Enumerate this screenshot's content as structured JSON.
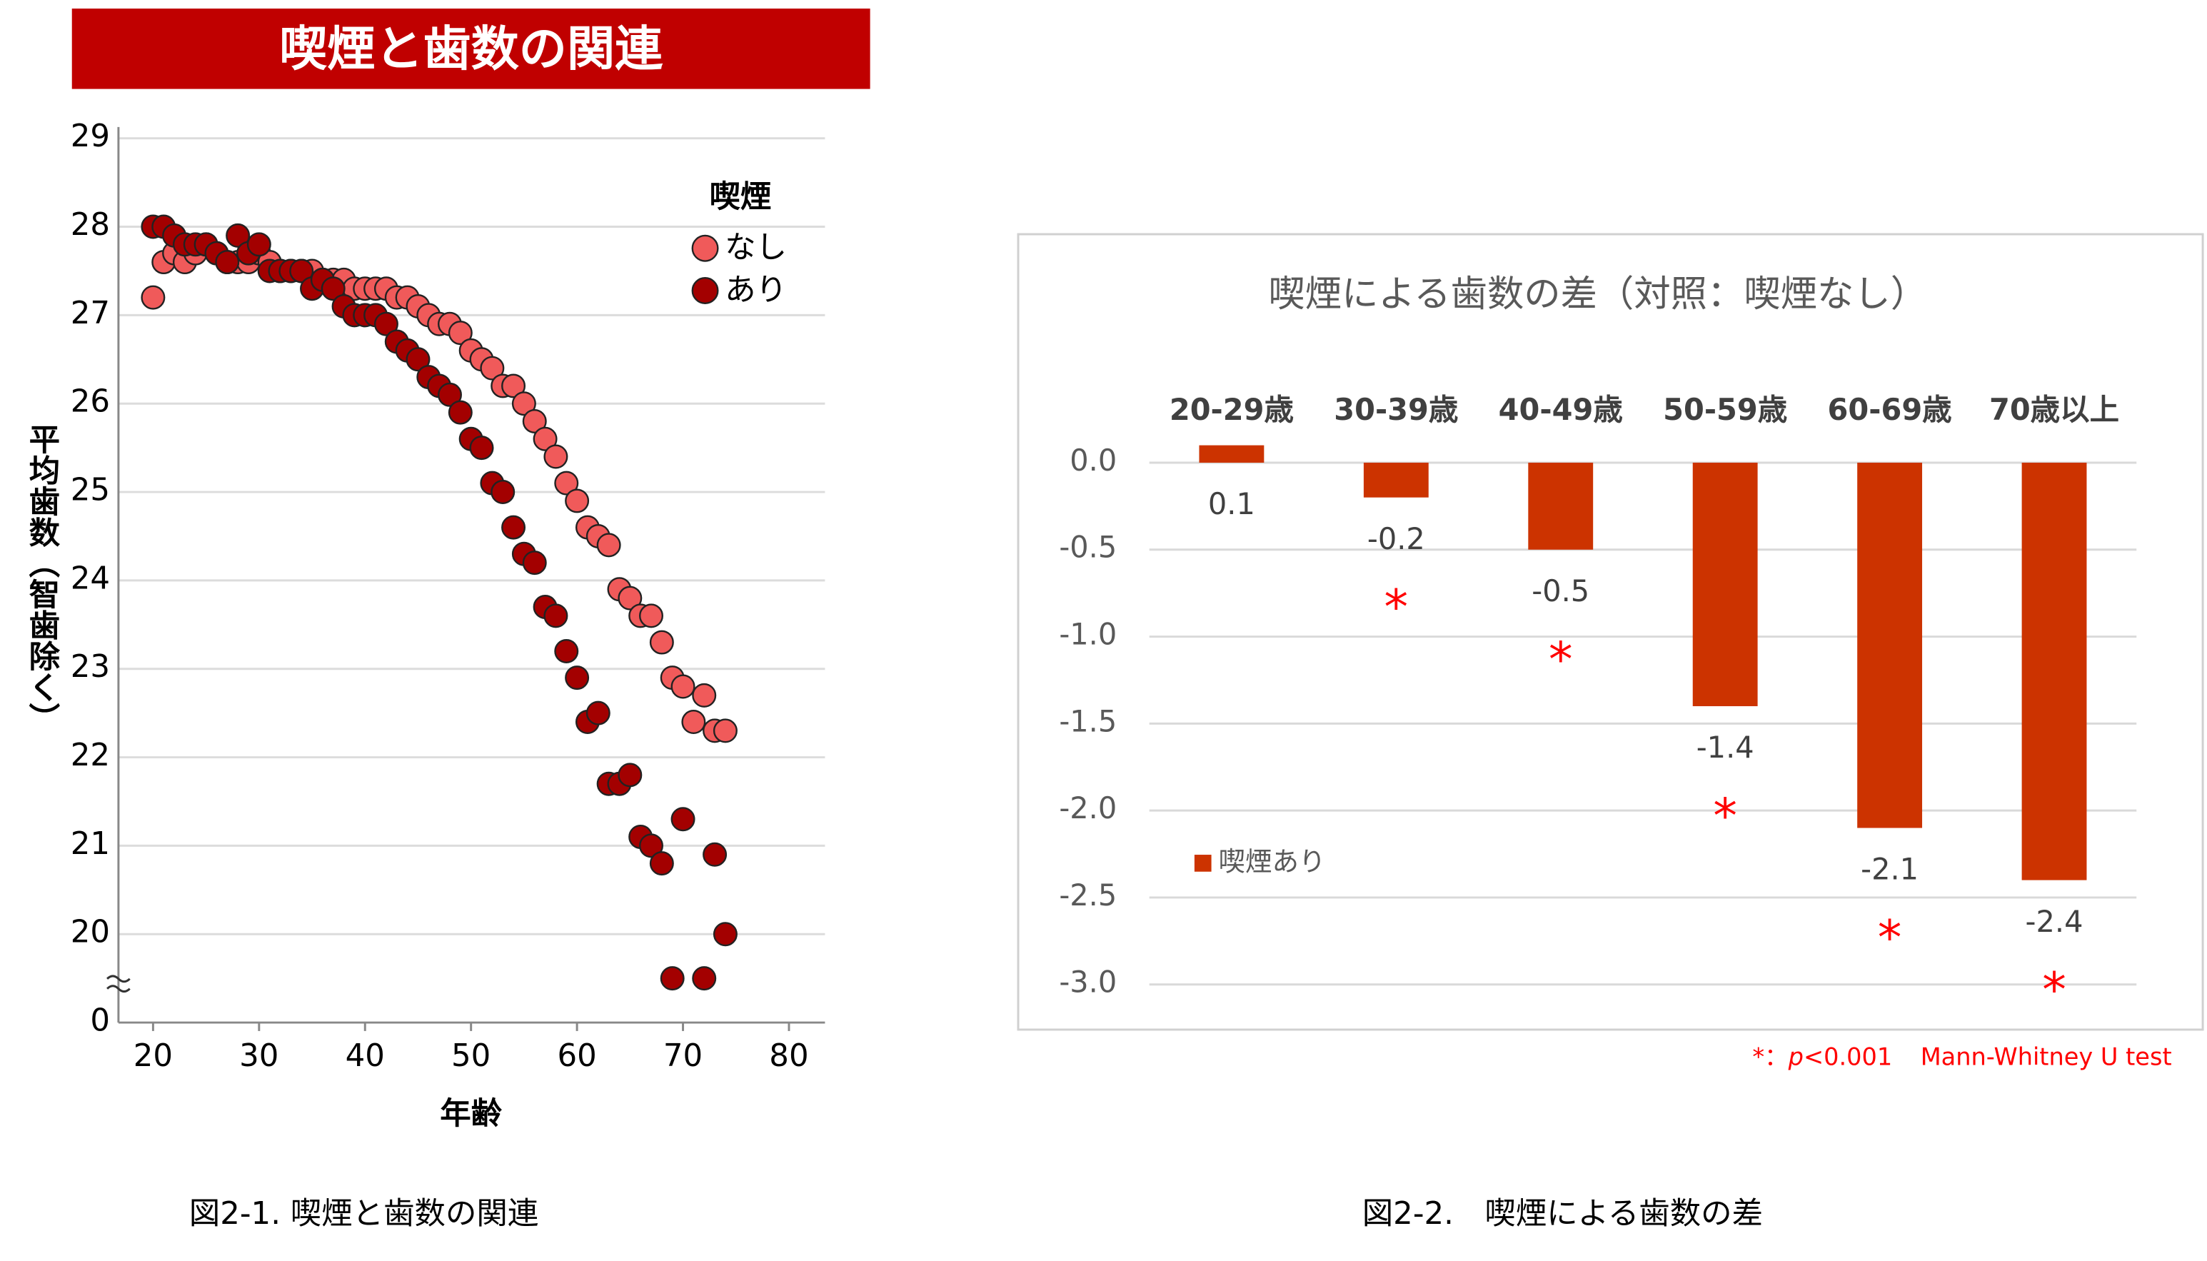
{
  "chart_data": [
    {
      "type": "scatter",
      "title": "喫煙と歯数の関連",
      "xlabel": "年齢",
      "ylabel": "平均歯数（智歯除く）",
      "caption": "図2-1. 喫煙と歯数の関連",
      "legend_title": "喫煙",
      "legend": "upper right",
      "grid": true,
      "xlim": [
        17,
        83
      ],
      "xticks": [
        20,
        30,
        40,
        50,
        60,
        70,
        80
      ],
      "ylim": [
        0,
        29
      ],
      "y_break": [
        0,
        19
      ],
      "yticks": [
        0,
        20,
        21,
        22,
        23,
        24,
        25,
        26,
        27,
        28,
        29
      ],
      "series": [
        {
          "name": "なし",
          "color": "#f05a5a",
          "x": [
            20,
            21,
            22,
            23,
            24,
            25,
            26,
            27,
            28,
            29,
            30,
            31,
            32,
            33,
            34,
            35,
            36,
            37,
            38,
            39,
            40,
            41,
            42,
            43,
            44,
            45,
            46,
            47,
            48,
            49,
            50,
            51,
            52,
            53,
            54,
            55,
            56,
            57,
            58,
            59,
            60,
            61,
            62,
            63,
            64,
            65,
            66,
            67,
            68,
            69,
            70,
            71,
            72,
            73,
            74
          ],
          "values": [
            27.2,
            27.6,
            27.7,
            27.6,
            27.7,
            27.8,
            27.7,
            27.6,
            27.6,
            27.6,
            27.7,
            27.6,
            27.5,
            27.5,
            27.5,
            27.5,
            27.4,
            27.4,
            27.4,
            27.3,
            27.3,
            27.3,
            27.3,
            27.2,
            27.2,
            27.1,
            27.0,
            26.9,
            26.9,
            26.8,
            26.6,
            26.5,
            26.4,
            26.2,
            26.2,
            26.0,
            25.8,
            25.6,
            25.4,
            25.1,
            24.9,
            24.6,
            24.5,
            24.4,
            23.9,
            23.8,
            23.6,
            23.6,
            23.3,
            22.9,
            22.8,
            22.4,
            22.7,
            22.3,
            22.3
          ]
        },
        {
          "name": "あり",
          "color": "#a30000",
          "x": [
            20,
            21,
            22,
            23,
            24,
            25,
            26,
            27,
            28,
            29,
            30,
            31,
            32,
            33,
            34,
            35,
            36,
            37,
            38,
            39,
            40,
            41,
            42,
            43,
            44,
            45,
            46,
            47,
            48,
            49,
            50,
            51,
            52,
            53,
            54,
            55,
            56,
            57,
            58,
            59,
            60,
            61,
            62,
            63,
            64,
            65,
            66,
            67,
            68,
            69,
            70,
            72,
            73,
            74
          ],
          "values": [
            28.0,
            28.0,
            27.9,
            27.8,
            27.8,
            27.8,
            27.7,
            27.6,
            27.9,
            27.7,
            27.8,
            27.5,
            27.5,
            27.5,
            27.5,
            27.3,
            27.4,
            27.3,
            27.1,
            27.0,
            27.0,
            27.0,
            26.9,
            26.7,
            26.6,
            26.5,
            26.3,
            26.2,
            26.1,
            25.9,
            25.6,
            25.5,
            25.1,
            25.0,
            24.6,
            24.3,
            24.2,
            23.7,
            23.6,
            23.2,
            22.9,
            22.4,
            22.5,
            21.7,
            21.7,
            21.8,
            21.1,
            21.0,
            20.8,
            19.5,
            21.3,
            19.5,
            20.9,
            20.0
          ]
        }
      ]
    },
    {
      "type": "bar",
      "title": "喫煙による歯数の差（対照：喫煙なし）",
      "caption": "図2-2.　喫煙による歯数の差",
      "categories": [
        "20-29歳",
        "30-39歳",
        "40-49歳",
        "50-59歳",
        "60-69歳",
        "70歳以上"
      ],
      "series": [
        {
          "name": "喫煙あり",
          "color": "#cc3300",
          "values": [
            0.1,
            -0.2,
            -0.5,
            -1.4,
            -2.1,
            -2.4
          ]
        }
      ],
      "significance": [
        null,
        "*",
        "*",
        "*",
        "*",
        "*"
      ],
      "ylim": [
        -3,
        0
      ],
      "yticks": [
        {
          "value": 0,
          "label": "0.0"
        },
        -0.5,
        {
          "value": -1,
          "label": "-1.0"
        },
        -1.5,
        {
          "value": -2,
          "label": "-2.0"
        },
        -2.5,
        {
          "value": -3,
          "label": "-3.0"
        }
      ],
      "grid": true,
      "legend": "lower left",
      "note": [
        "*：",
        "p",
        "<0.001",
        "Mann-Whitney U test"
      ]
    }
  ]
}
